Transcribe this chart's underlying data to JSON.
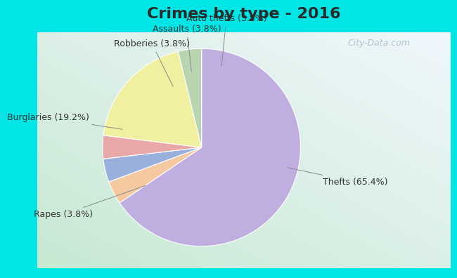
{
  "title": "Crimes by type - 2016",
  "slices": [
    {
      "label": "Thefts (65.4%)",
      "value": 65.4,
      "color": "#c0aee0"
    },
    {
      "label": "Auto thefts (3.8%)",
      "value": 3.8,
      "color": "#f5c9a0"
    },
    {
      "label": "Assaults (3.8%)",
      "value": 3.8,
      "color": "#9ab0dc"
    },
    {
      "label": "Robberies (3.8%)",
      "value": 3.8,
      "color": "#e8a8a8"
    },
    {
      "label": "Burglaries (19.2%)",
      "value": 19.2,
      "color": "#f0f0a0"
    },
    {
      "label": "Rapes (3.8%)",
      "value": 3.8,
      "color": "#b8d4b0"
    }
  ],
  "background_cyan": "#00e5e5",
  "background_grad_top": "#e8f4f8",
  "background_grad_bot": "#c8e8d0",
  "title_fontsize": 16,
  "label_fontsize": 9,
  "watermark": "City-Data.com"
}
